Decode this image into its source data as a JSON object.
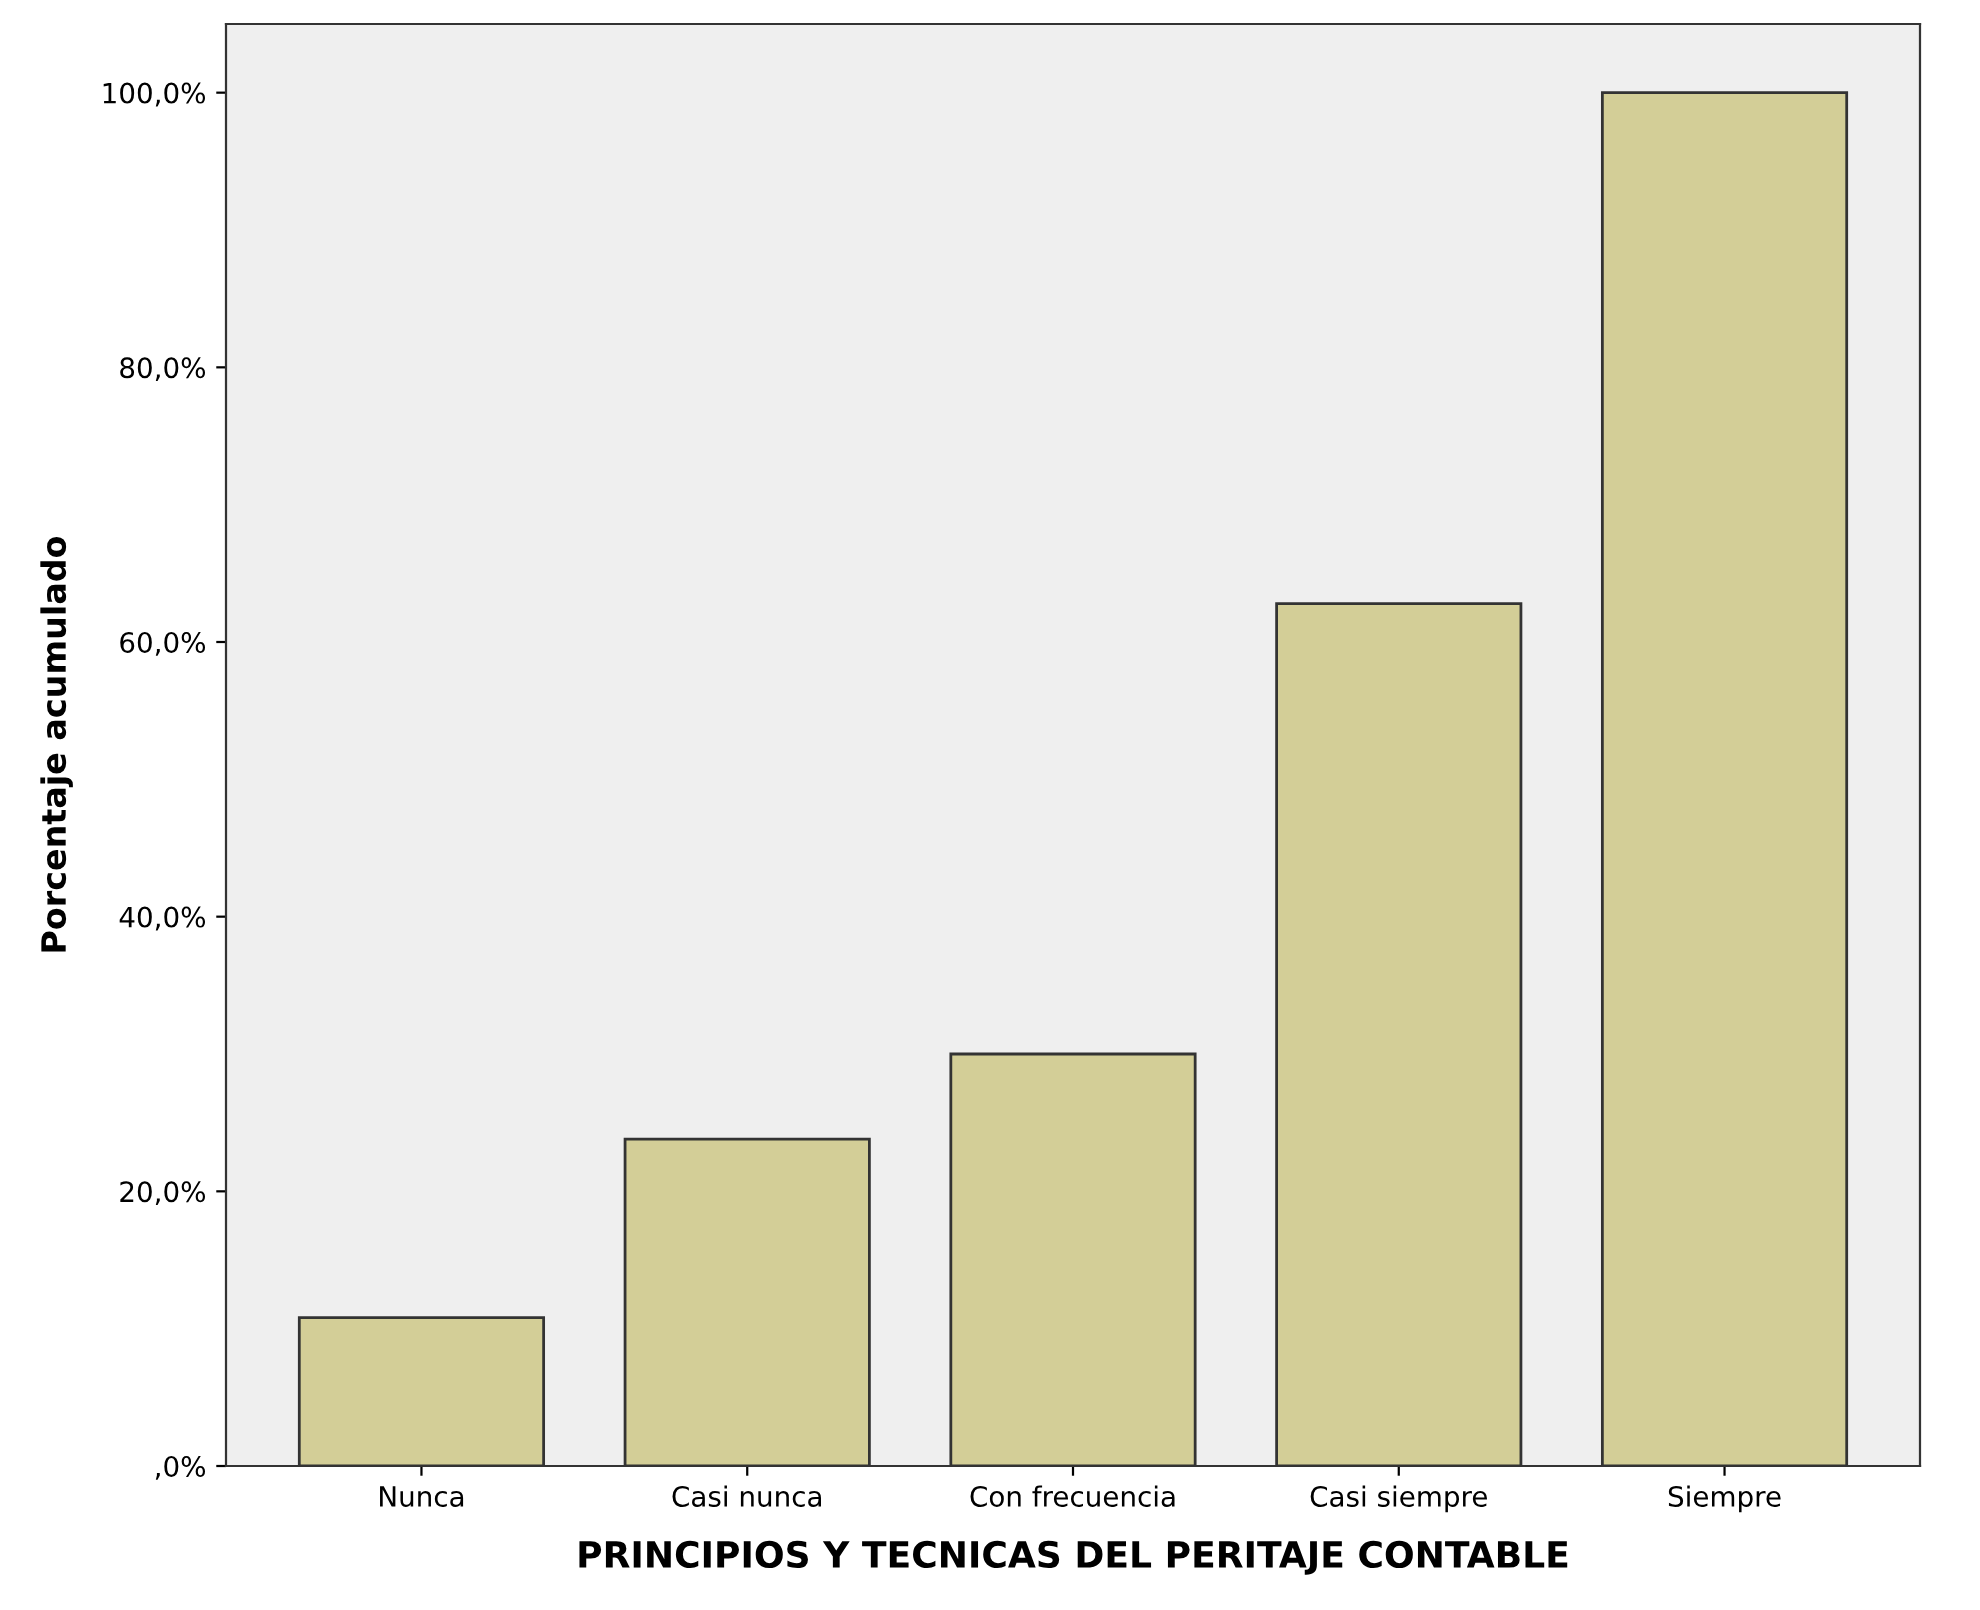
{
  "chart_data": {
    "type": "bar",
    "xlabel": "PRINCIPIOS Y TECNICAS DEL PERITAJE CONTABLE",
    "ylabel": "Porcentaje acumulado",
    "categories": [
      "Nunca",
      "Casi nunca",
      "Con frecuencia",
      "Casi siempre",
      "Siempre"
    ],
    "values": [
      10.8,
      23.8,
      30.0,
      62.8,
      100.0
    ],
    "color": "#d3ce97",
    "ylim": [
      0,
      105
    ],
    "yticks": [
      {
        "value": 0,
        "label": ",0%"
      },
      {
        "value": 20,
        "label": "20,0%"
      },
      {
        "value": 40,
        "label": "40,0%"
      },
      {
        "value": 60,
        "label": "60,0%"
      },
      {
        "value": 80,
        "label": "80,0%"
      },
      {
        "value": 100,
        "label": "100,0%"
      }
    ],
    "grid": false
  }
}
